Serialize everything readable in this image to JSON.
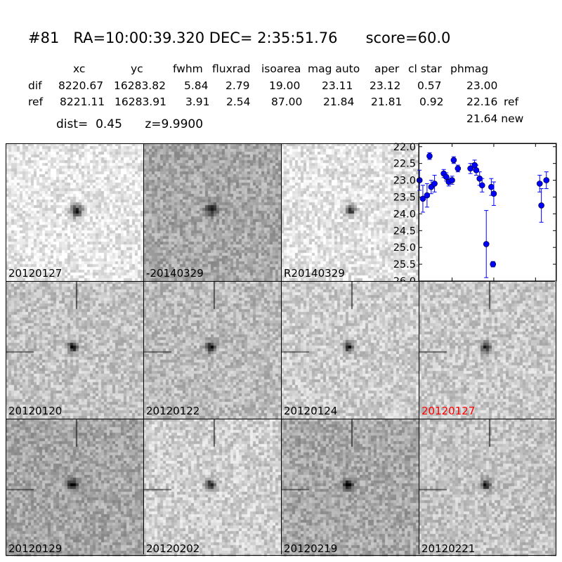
{
  "header": {
    "title_text": "#81   RA=10:00:39.320 DEC= 2:35:51.76      score=60.0",
    "columns": [
      "xc",
      "yc",
      "fwhm",
      "fluxrad",
      "isoarea",
      "mag auto",
      "aper",
      "cl star",
      "phmag"
    ],
    "rows": [
      {
        "label": "dif",
        "values": [
          "8220.67",
          "16283.82",
          "5.84",
          "2.79",
          "19.00",
          "23.11",
          "23.12",
          "0.57",
          "23.00"
        ],
        "extra": ""
      },
      {
        "label": "ref",
        "values": [
          "8221.11",
          "16283.91",
          "3.91",
          "2.54",
          "87.00",
          "21.84",
          "21.81",
          "0.92",
          "22.16"
        ],
        "extra": "ref"
      }
    ],
    "new_mag": "21.64 new",
    "dist_text": "dist=  0.45      z=9.9900"
  },
  "top_panels": [
    {
      "label": "20120127",
      "label_color": "#000000",
      "circle": "red",
      "bg": "#e8e8e8"
    },
    {
      "label": "-20140329",
      "label_color": "#000000",
      "circle": "black",
      "bg": "#a8a8a8"
    },
    {
      "label": "R20140329",
      "label_color": "#000000",
      "circle": "red",
      "bg": "#e4e4e4"
    }
  ],
  "stamps": [
    {
      "label": "20120120",
      "label_color": "#000000",
      "bg": "#c4c4c4"
    },
    {
      "label": "20120122",
      "label_color": "#000000",
      "bg": "#bcbcbc"
    },
    {
      "label": "20120124",
      "label_color": "#000000",
      "bg": "#cdcdcd"
    },
    {
      "label": "20120127",
      "label_color": "#ff0000",
      "bg": "#c9c9c9"
    },
    {
      "label": "20120129",
      "label_color": "#000000",
      "bg": "#a6a6a6"
    },
    {
      "label": "20120202",
      "label_color": "#000000",
      "bg": "#cfcfcf"
    },
    {
      "label": "20120219",
      "label_color": "#000000",
      "bg": "#a8a8a8"
    },
    {
      "label": "20120221",
      "label_color": "#000000",
      "bg": "#c4c4c4"
    }
  ],
  "chart_data": {
    "type": "scatter",
    "title": "",
    "xlabel": "",
    "ylabel": "",
    "xlim": [
      -40,
      125
    ],
    "ylim": [
      26.0,
      21.9
    ],
    "y_inverted": true,
    "yticks": [
      "22.0",
      "22.5",
      "23.0",
      "23.5",
      "24.0",
      "24.5",
      "25.0",
      "25.5",
      "26.0"
    ],
    "xticks": [
      "0",
      "50",
      "100"
    ],
    "marker_color": "#0000ff",
    "points": [
      {
        "x": -39,
        "y": 23.0,
        "err": 0.3
      },
      {
        "x": -35,
        "y": 23.55,
        "err": 0.4
      },
      {
        "x": -30,
        "y": 23.45,
        "err": 0.35
      },
      {
        "x": -27,
        "y": 22.28,
        "err": 0.1
      },
      {
        "x": -25,
        "y": 23.2,
        "err": 0.2
      },
      {
        "x": -21,
        "y": 23.1,
        "err": 0.25
      },
      {
        "x": -10,
        "y": 22.8,
        "err": 0.12
      },
      {
        "x": -7,
        "y": 22.9,
        "err": 0.12
      },
      {
        "x": -4,
        "y": 23.05,
        "err": 0.12
      },
      {
        "x": 0,
        "y": 23.0,
        "err": 0.12
      },
      {
        "x": 2,
        "y": 22.4,
        "err": 0.1
      },
      {
        "x": 7,
        "y": 22.65,
        "err": 0.1
      },
      {
        "x": 22,
        "y": 22.65,
        "err": 0.15
      },
      {
        "x": 27,
        "y": 22.55,
        "err": 0.15
      },
      {
        "x": 29,
        "y": 22.7,
        "err": 0.15
      },
      {
        "x": 33,
        "y": 22.95,
        "err": 0.2
      },
      {
        "x": 36,
        "y": 23.15,
        "err": 0.2
      },
      {
        "x": 41,
        "y": 24.9,
        "err": 1.0
      },
      {
        "x": 47,
        "y": 23.2,
        "err": 0.25
      },
      {
        "x": 50,
        "y": 23.4,
        "err": 0.35
      },
      {
        "x": 49,
        "y": 25.5,
        "err": 0.08
      },
      {
        "x": 105,
        "y": 23.1,
        "err": 0.25
      },
      {
        "x": 107,
        "y": 23.75,
        "err": 0.5
      },
      {
        "x": 113,
        "y": 23.0,
        "err": 0.25
      }
    ]
  }
}
